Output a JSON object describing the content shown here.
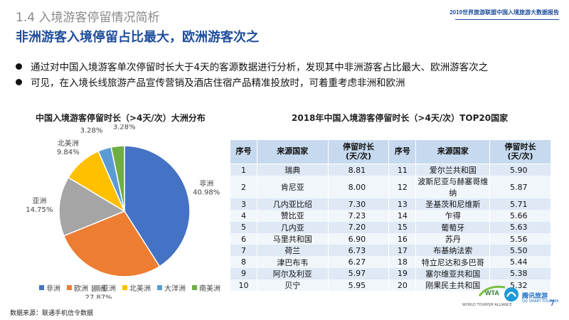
{
  "header": {
    "section_title": "1.4 入境游客停留情况简析",
    "report_name": "2019世界旅游联盟中国入境旅游大数据报告",
    "headline": "非洲游客入境停留占比最大，欧洲游客次之"
  },
  "bullets": [
    "通过对中国入境游客单次停留时长大于4天的客源数据进行分析，发现其中非洲游客占比最大、欧洲游客次之",
    "可见，在入境长线旅游产品宣传营销及酒店住宿产品精准投放时，可着重考虑非洲和欧洲"
  ],
  "chart_data": [
    {
      "type": "pie",
      "title": "中国入境游客停留时长（>4天/次）大洲分布",
      "slices": [
        {
          "label": "非洲",
          "value": 40.98,
          "value_text": "40.98%",
          "color": "#4472c4"
        },
        {
          "label": "欧洲",
          "value": 27.87,
          "value_text": "27.87%",
          "color": "#ed7d31"
        },
        {
          "label": "亚洲",
          "value": 14.75,
          "value_text": "14.75%",
          "color": "#a5a5a5"
        },
        {
          "label": "北美洲",
          "value": 9.84,
          "value_text": "9.84%",
          "color": "#ffc000"
        },
        {
          "label": "大洋洲",
          "value": 3.28,
          "value_text": "3.28%",
          "color": "#5b9bd5"
        },
        {
          "label": "南美洲",
          "value": 3.28,
          "value_text": "3.28%",
          "color": "#70ad47"
        }
      ],
      "legend_position": "bottom"
    },
    {
      "type": "table",
      "title": "2018年中国入境游客停留时长（>4天/次）TOP20国家",
      "columns": [
        "序号",
        "来源国家",
        "停留时长\n(天/次)",
        "序号",
        "来源国家",
        "停留时长\n(天/次)"
      ],
      "column_labels": {
        "rank": "序号",
        "country": "来源国家",
        "stay_line1": "停留时长",
        "stay_line2": "(天/次)"
      },
      "rows": [
        {
          "rank": "1",
          "country": "瑞典",
          "stay": "8.81"
        },
        {
          "rank": "2",
          "country": "肯尼亚",
          "stay": "8.00"
        },
        {
          "rank": "3",
          "country": "几内亚比绍",
          "stay": "7.30"
        },
        {
          "rank": "4",
          "country": "赞比亚",
          "stay": "7.23"
        },
        {
          "rank": "5",
          "country": "几内亚",
          "stay": "7.20"
        },
        {
          "rank": "6",
          "country": "马里共和国",
          "stay": "6.90"
        },
        {
          "rank": "7",
          "country": "荷兰",
          "stay": "6.73"
        },
        {
          "rank": "8",
          "country": "津巴布韦",
          "stay": "6.27"
        },
        {
          "rank": "9",
          "country": "阿尔及利亚",
          "stay": "5.97"
        },
        {
          "rank": "10",
          "country": "贝宁",
          "stay": "5.95"
        },
        {
          "rank": "11",
          "country": "爱尔兰共和国",
          "stay": "5.90"
        },
        {
          "rank": "12",
          "country": "波斯尼亚与赫塞哥维纳",
          "stay": "5.87"
        },
        {
          "rank": "13",
          "country": "圣基茨和尼维斯",
          "stay": "5.71"
        },
        {
          "rank": "14",
          "country": "乍得",
          "stay": "5.66"
        },
        {
          "rank": "15",
          "country": "葡萄牙",
          "stay": "5.63"
        },
        {
          "rank": "16",
          "country": "苏丹",
          "stay": "5.56"
        },
        {
          "rank": "17",
          "country": "布基纳法索",
          "stay": "5.50"
        },
        {
          "rank": "18",
          "country": "特立尼达和多巴哥",
          "stay": "5.44"
        },
        {
          "rank": "19",
          "country": "塞尔维亚共和国",
          "stay": "5.38"
        },
        {
          "rank": "20",
          "country": "刚果民主共和国",
          "stay": "5.32"
        }
      ]
    }
  ],
  "footer": {
    "source": "数据来源：联通手机信令数据",
    "logo_wta_text": "WTA",
    "logo_wta_caption": "WORLD TOURISM ALLIANCE",
    "logo_ts_text": "腾讯旅游",
    "logo_ts_caption": "QQ SMART TOURISM",
    "page_number": "7"
  }
}
